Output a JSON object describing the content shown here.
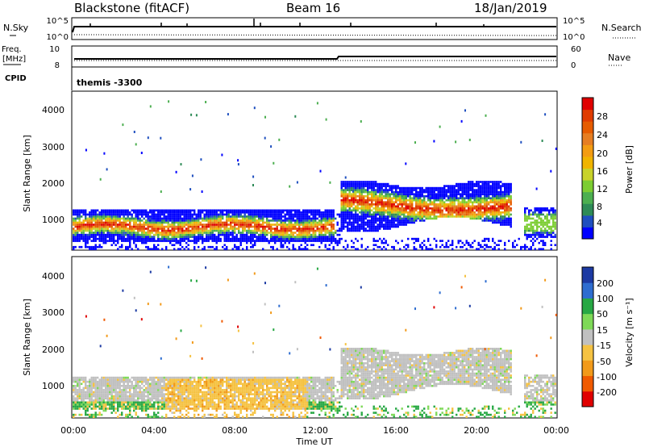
{
  "header": {
    "station": "Blackstone (fitACF)",
    "beam": "Beam 16",
    "date": "18/Jan/2019"
  },
  "status_panels": {
    "nsky_label": "N.Sky",
    "nsearch_label": "N.Search",
    "noise_ticks": [
      "10^5",
      "10^0"
    ],
    "freq_label_1": "Freq.",
    "freq_label_2": "[MHz]",
    "freq_ticks": [
      "10",
      "8"
    ],
    "nave_label": "Nave",
    "nave_ticks": [
      "60",
      "0"
    ],
    "cpid_label": "CPID",
    "cpid_value": "themis -3300"
  },
  "chart_data": [
    {
      "type": "heatmap",
      "name": "power",
      "ylabel": "Slant Range [km]",
      "y_ticks": [
        "4000",
        "3000",
        "2000",
        "1000"
      ],
      "ylim": [
        200,
        4500
      ],
      "colorbar_label": "Power [dB]",
      "colorbar_ticks": [
        "28",
        "24",
        "20",
        "16",
        "12",
        "8",
        "4"
      ],
      "colorscale": [
        "#0000ff",
        "#1f4fbf",
        "#2e8b57",
        "#4caf50",
        "#7ccd32",
        "#c8d22a",
        "#f0b400",
        "#f39c12",
        "#e67e22",
        "#e65c00",
        "#e03c00",
        "#e00000"
      ],
      "bands": [
        {
          "x": [
            0,
            12.8
          ],
          "y": [
            600,
            1200
          ],
          "level": "mid-high"
        },
        {
          "x": [
            13.2,
            21.8
          ],
          "y": [
            800,
            2000
          ],
          "level": "high"
        },
        {
          "x": [
            22.4,
            24
          ],
          "y": [
            600,
            1300
          ],
          "level": "low"
        }
      ]
    },
    {
      "type": "heatmap",
      "name": "velocity",
      "ylabel": "Slant Range [km]",
      "y_ticks": [
        "4000",
        "3000",
        "2000",
        "1000"
      ],
      "ylim": [
        200,
        4500
      ],
      "colorbar_label": "Velocity [m s⁻¹]",
      "colorbar_ticks": [
        "200",
        "100",
        "50",
        "15",
        "-15",
        "-50",
        "-100",
        "-200"
      ],
      "colorscale": [
        "#e00000",
        "#f05a00",
        "#f29a1a",
        "#f5c242",
        "#c0c0c0",
        "#7ed957",
        "#27a844",
        "#2e6dd0",
        "#1c3aa3"
      ],
      "x_ticks": [
        "00:00",
        "04:00",
        "08:00",
        "12:00",
        "16:00",
        "20:00",
        "00:00"
      ],
      "xlabel": "Time UT"
    }
  ]
}
